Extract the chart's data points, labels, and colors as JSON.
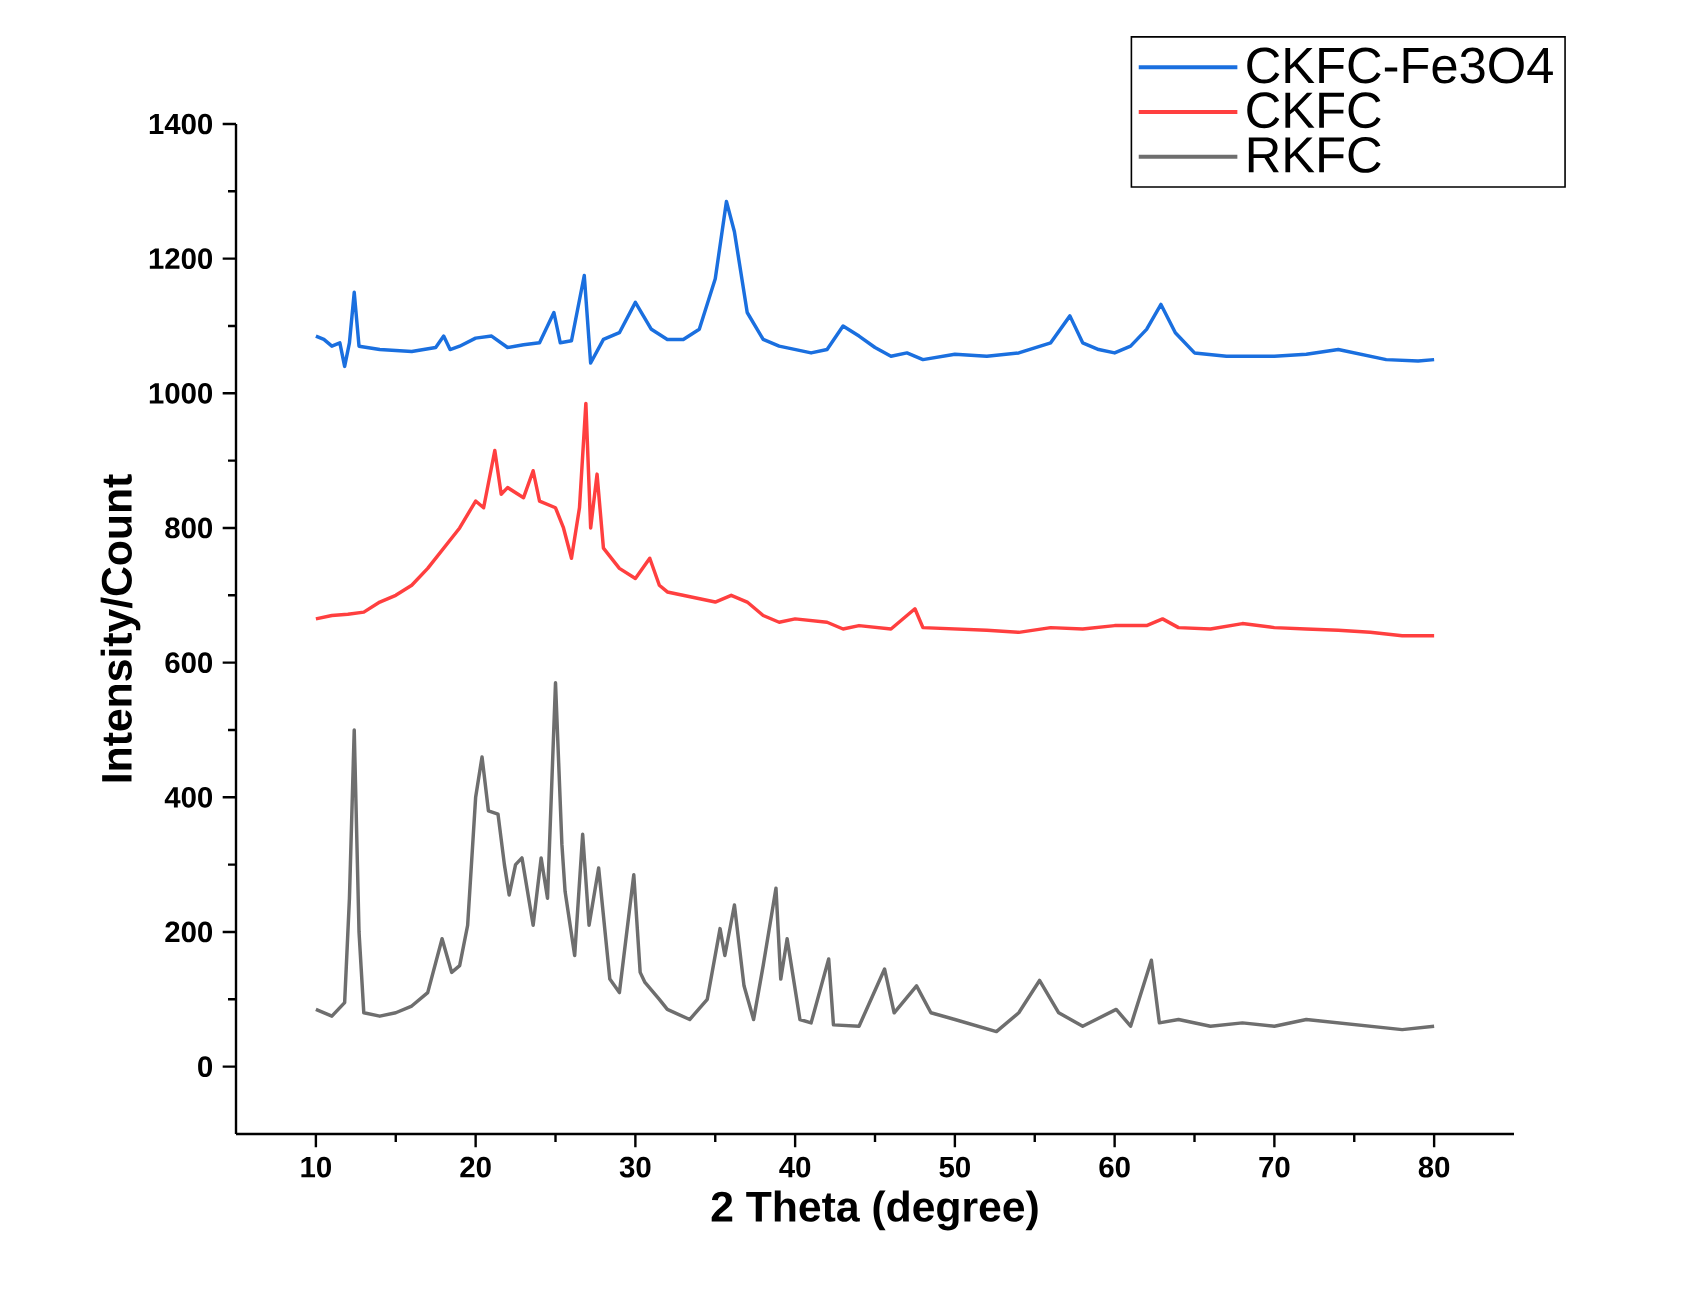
{
  "chart_data": {
    "type": "line",
    "xlabel": "2 Theta (degree)",
    "ylabel": "Intensity/Count",
    "xlim": [
      5,
      85
    ],
    "ylim": [
      -100,
      1400
    ],
    "xticks": [
      10,
      20,
      30,
      40,
      50,
      60,
      70,
      80
    ],
    "yticks": [
      0,
      200,
      400,
      600,
      800,
      1000,
      1200,
      1400
    ],
    "legend": "top right",
    "grid": false,
    "marker": "none",
    "line_style": "solid",
    "series": [
      {
        "name": "CKFC-Fe3O4",
        "color": "#1a6fdf",
        "x": [
          10,
          10.5,
          11,
          11.5,
          11.8,
          12.1,
          12.4,
          12.7,
          14,
          16,
          17.5,
          18,
          18.4,
          19,
          20,
          21,
          22,
          23,
          24,
          24.9,
          25.3,
          26,
          26.8,
          27.2,
          28,
          29,
          30,
          31,
          32,
          33,
          34,
          35,
          35.7,
          36.2,
          37,
          38,
          39,
          40,
          41,
          42,
          43,
          44,
          45,
          46,
          47,
          48,
          50,
          52,
          54,
          56,
          57.2,
          58,
          59,
          60,
          61,
          62,
          62.9,
          63.8,
          65,
          67,
          70,
          72,
          74,
          75,
          77,
          79,
          80
        ],
        "values": [
          1085,
          1080,
          1070,
          1075,
          1040,
          1075,
          1150,
          1070,
          1065,
          1062,
          1068,
          1085,
          1065,
          1070,
          1082,
          1085,
          1068,
          1072,
          1075,
          1120,
          1075,
          1078,
          1175,
          1045,
          1080,
          1090,
          1135,
          1095,
          1080,
          1080,
          1095,
          1170,
          1285,
          1240,
          1120,
          1080,
          1070,
          1065,
          1060,
          1065,
          1100,
          1085,
          1068,
          1055,
          1060,
          1050,
          1058,
          1055,
          1060,
          1075,
          1115,
          1075,
          1065,
          1060,
          1070,
          1095,
          1132,
          1090,
          1060,
          1055,
          1055,
          1058,
          1065,
          1060,
          1050,
          1048,
          1050
        ]
      },
      {
        "name": "CKFC",
        "color": "#ff3f3f",
        "x": [
          10,
          11,
          12,
          13,
          14,
          15,
          16,
          17,
          18,
          19,
          20,
          20.5,
          21.2,
          21.6,
          22,
          23,
          23.6,
          24,
          25,
          25.5,
          26,
          26.5,
          26.9,
          27.2,
          27.6,
          28,
          29,
          30,
          30.9,
          31.5,
          32,
          34,
          35,
          36,
          37,
          38,
          39,
          40,
          42,
          43,
          44,
          46,
          47.5,
          48,
          50,
          52,
          54,
          56,
          58,
          60,
          62,
          63,
          64,
          66,
          68,
          70,
          72,
          74,
          76,
          78,
          80
        ],
        "values": [
          665,
          670,
          672,
          675,
          690,
          700,
          715,
          740,
          770,
          800,
          840,
          830,
          915,
          850,
          860,
          845,
          885,
          840,
          830,
          800,
          755,
          830,
          985,
          800,
          880,
          770,
          740,
          725,
          755,
          715,
          705,
          695,
          690,
          700,
          690,
          670,
          660,
          665,
          660,
          650,
          655,
          650,
          680,
          652,
          650,
          648,
          645,
          652,
          650,
          655,
          655,
          665,
          652,
          650,
          658,
          652,
          650,
          648,
          645,
          640,
          640
        ]
      },
      {
        "name": "RKFC",
        "color": "#6e6e6e",
        "x": [
          10,
          11,
          11.8,
          12.1,
          12.4,
          12.7,
          13,
          14,
          15,
          16,
          17,
          17.9,
          18.5,
          19,
          19.5,
          20,
          20.4,
          20.8,
          21.4,
          21.8,
          22.1,
          22.5,
          22.9,
          23.6,
          24.1,
          24.5,
          25,
          25.4,
          25.6,
          26.2,
          26.7,
          27.1,
          27.7,
          28.4,
          29,
          29.9,
          30.3,
          30.6,
          31.5,
          32,
          33.4,
          34.5,
          35.3,
          35.6,
          36.2,
          36.8,
          37.4,
          38,
          38.8,
          39.1,
          39.5,
          40.3,
          41,
          42.1,
          42.4,
          44,
          45.6,
          46.2,
          47.6,
          48.5,
          50,
          52.6,
          54,
          55.3,
          56.5,
          58,
          60.1,
          61,
          62.3,
          62.8,
          64,
          66,
          68,
          70,
          72,
          74,
          76,
          78,
          80
        ],
        "values": [
          85,
          75,
          95,
          250,
          500,
          200,
          80,
          75,
          80,
          90,
          110,
          190,
          140,
          150,
          210,
          400,
          460,
          380,
          375,
          300,
          255,
          300,
          310,
          210,
          310,
          250,
          570,
          330,
          260,
          165,
          345,
          210,
          295,
          130,
          110,
          285,
          140,
          125,
          100,
          85,
          70,
          100,
          205,
          165,
          240,
          120,
          70,
          150,
          265,
          130,
          190,
          70,
          65,
          160,
          62,
          60,
          145,
          80,
          120,
          80,
          70,
          52,
          80,
          128,
          80,
          60,
          85,
          60,
          158,
          65,
          70,
          60,
          65,
          60,
          70,
          65,
          60,
          55,
          60
        ]
      }
    ]
  }
}
